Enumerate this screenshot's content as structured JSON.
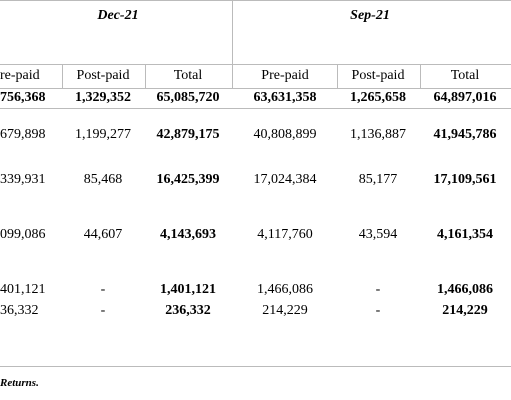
{
  "header": {
    "periods": [
      "Dec-21",
      "Sep-21"
    ]
  },
  "table": {
    "columns": [
      "re-paid",
      "Post-paid",
      "Total",
      "Pre-paid",
      "Post-paid",
      "Total"
    ],
    "rows": [
      [
        "756,368",
        "1,329,352",
        "65,085,720",
        "63,631,358",
        "1,265,658",
        "64,897,016"
      ],
      [
        "679,898",
        "1,199,277",
        "42,879,175",
        "40,808,899",
        "1,136,887",
        "41,945,786"
      ],
      [
        "339,931",
        "85,468",
        "16,425,399",
        "17,024,384",
        "85,177",
        "17,109,561"
      ],
      [
        "099,086",
        "44,607",
        "4,143,693",
        "4,117,760",
        "43,594",
        "4,161,354"
      ],
      [
        "401,121",
        "-",
        "1,401,121",
        "1,466,086",
        "-",
        "1,466,086"
      ],
      [
        "36,332",
        "-",
        "236,332",
        "214,229",
        "-",
        "214,229"
      ]
    ]
  },
  "footer": "Returns."
}
